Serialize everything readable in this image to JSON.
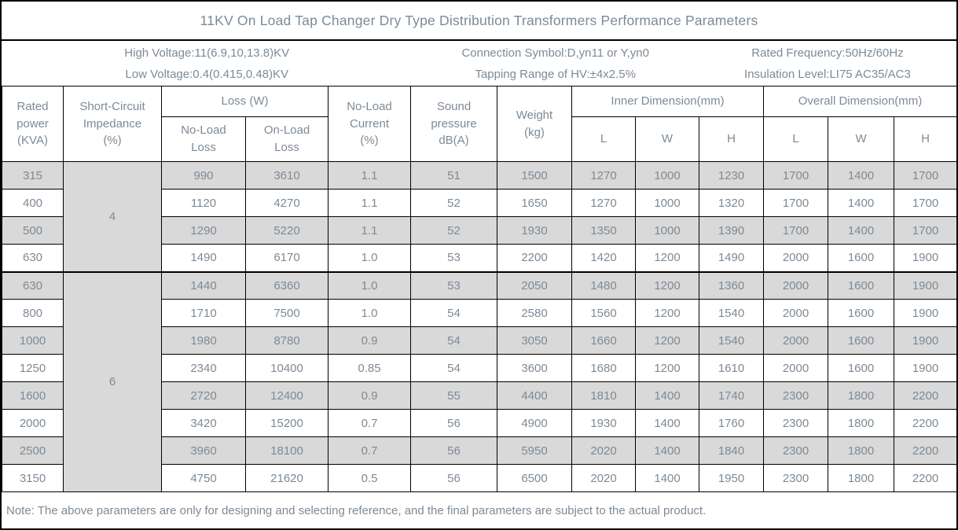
{
  "title": "11KV On Load Tap Changer Dry Type Distribution Transformers Performance Parameters",
  "info": {
    "group1": {
      "line1": "High Voltage:11(6.9,10,13.8)KV",
      "line2": "Low Voltage:0.4(0.415,0.48)KV"
    },
    "group2": {
      "line1": "Connection Symbol:D,yn11 or Y,yn0",
      "line2": "Tapping Range of HV:±4x2.5%"
    },
    "group3": {
      "line1": "Rated Frequency:50Hz/60Hz",
      "line2": "Insulation Level:LI75 AC35/AC3"
    }
  },
  "table": {
    "headers": {
      "rated_power": "Rated\npower\n(KVA)",
      "impedance": "Short-Circuit\nImpedance\n(%)",
      "loss": "Loss (W)",
      "no_load_loss": "No-Load\nLoss",
      "on_load_loss": "On-Load\nLoss",
      "no_load_current": "No-Load\nCurrent\n(%)",
      "sound_pressure": "Sound\npressure\ndB(A)",
      "weight": "Weight\n(kg)",
      "inner_dimension": "Inner Dimension(mm)",
      "overall_dimension": "Overall Dimension(mm)",
      "dim_l": "L",
      "dim_w": "W",
      "dim_h": "H"
    },
    "groups": [
      {
        "impedance": "4",
        "rows": [
          [
            "315",
            "990",
            "3610",
            "1.1",
            "51",
            "1500",
            "1270",
            "1000",
            "1230",
            "1700",
            "1400",
            "1700"
          ],
          [
            "400",
            "1120",
            "4270",
            "1.1",
            "52",
            "1650",
            "1270",
            "1000",
            "1320",
            "1700",
            "1400",
            "1700"
          ],
          [
            "500",
            "1290",
            "5220",
            "1.1",
            "52",
            "1930",
            "1350",
            "1000",
            "1390",
            "1700",
            "1400",
            "1700"
          ],
          [
            "630",
            "1490",
            "6170",
            "1.0",
            "53",
            "2200",
            "1420",
            "1200",
            "1490",
            "2000",
            "1600",
            "1900"
          ]
        ]
      },
      {
        "impedance": "6",
        "rows": [
          [
            "630",
            "1440",
            "6360",
            "1.0",
            "53",
            "2050",
            "1480",
            "1200",
            "1360",
            "2000",
            "1600",
            "1900"
          ],
          [
            "800",
            "1710",
            "7500",
            "1.0",
            "54",
            "2580",
            "1560",
            "1200",
            "1540",
            "2000",
            "1600",
            "1900"
          ],
          [
            "1000",
            "1980",
            "8780",
            "0.9",
            "54",
            "3050",
            "1660",
            "1200",
            "1540",
            "2000",
            "1600",
            "1900"
          ],
          [
            "1250",
            "2340",
            "10400",
            "0.85",
            "54",
            "3600",
            "1680",
            "1200",
            "1610",
            "2000",
            "1600",
            "1900"
          ],
          [
            "1600",
            "2720",
            "12400",
            "0.9",
            "55",
            "4400",
            "1810",
            "1400",
            "1740",
            "2300",
            "1800",
            "2200"
          ],
          [
            "2000",
            "3420",
            "15200",
            "0.7",
            "56",
            "4900",
            "1930",
            "1400",
            "1760",
            "2300",
            "1800",
            "2200"
          ],
          [
            "2500",
            "3960",
            "18100",
            "0.7",
            "56",
            "5950",
            "2020",
            "1400",
            "1840",
            "2300",
            "1800",
            "2200"
          ],
          [
            "3150",
            "4750",
            "21620",
            "0.5",
            "56",
            "6500",
            "2020",
            "1400",
            "1950",
            "2300",
            "1800",
            "2200"
          ]
        ]
      }
    ]
  },
  "note": "Note: The above parameters are only for designing and selecting  reference, and the final parameters are subject to the actual product.",
  "colors": {
    "border": "#000000",
    "text": "#7d8a96",
    "stripe_background": "#d9d9d9"
  }
}
